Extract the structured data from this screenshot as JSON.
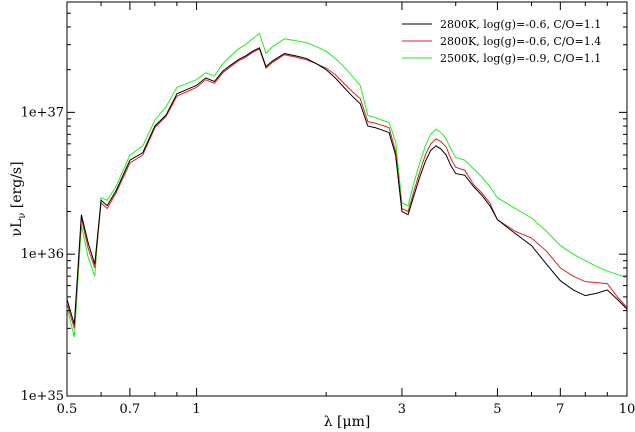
{
  "chart_data": {
    "type": "line",
    "xlabel": "λ [μm]",
    "ylabel_main": "νL",
    "ylabel_sub": "ν",
    "ylabel_unit": "[erg/s]",
    "xscale": "log",
    "yscale": "log",
    "xlim": [
      0.5,
      10
    ],
    "ylim": [
      1e+35,
      6e+37
    ],
    "x_ticks": [
      {
        "value": 0.5,
        "label": "0.5"
      },
      {
        "value": 0.7,
        "label": "0.7"
      },
      {
        "value": 1,
        "label": "1"
      },
      {
        "value": 3,
        "label": "3"
      },
      {
        "value": 5,
        "label": "5"
      },
      {
        "value": 7,
        "label": "7"
      },
      {
        "value": 10,
        "label": "10"
      }
    ],
    "y_ticks": [
      {
        "value": 1e+35,
        "label": "1e+35"
      },
      {
        "value": 1e+36,
        "label": "1e+36"
      },
      {
        "value": 1e+37,
        "label": "1e+37"
      }
    ],
    "grid": false,
    "legend_position": "top-right",
    "x": [
      0.5,
      0.52,
      0.54,
      0.56,
      0.58,
      0.6,
      0.62,
      0.65,
      0.7,
      0.75,
      0.8,
      0.85,
      0.9,
      0.95,
      1.0,
      1.05,
      1.1,
      1.15,
      1.2,
      1.25,
      1.3,
      1.35,
      1.4,
      1.45,
      1.5,
      1.6,
      1.7,
      1.8,
      1.9,
      2.0,
      2.1,
      2.2,
      2.3,
      2.4,
      2.5,
      2.6,
      2.7,
      2.8,
      2.9,
      3.0,
      3.1,
      3.2,
      3.3,
      3.4,
      3.5,
      3.6,
      3.7,
      3.8,
      3.9,
      4.0,
      4.2,
      4.4,
      4.6,
      4.8,
      5.0,
      5.5,
      6.0,
      6.5,
      7.0,
      7.5,
      8.0,
      8.5,
      9.0,
      9.5,
      10.0
    ],
    "series": [
      {
        "name": "2800K, log(g)=-0.6, C/O=1.1",
        "color": "#000000",
        "values": [
          4.8e+35,
          3.2e+35,
          1.9e+36,
          1.2e+36,
          8.5e+35,
          2.4e+36,
          2.2e+36,
          2.8e+36,
          4.6e+36,
          5.2e+36,
          8e+36,
          9.6e+36,
          1.35e+37,
          1.45e+37,
          1.55e+37,
          1.75e+37,
          1.65e+37,
          1.95e+37,
          2.15e+37,
          2.35e+37,
          2.5e+37,
          2.7e+37,
          2.85e+37,
          2.1e+37,
          2.3e+37,
          2.6e+37,
          2.5e+37,
          2.4e+37,
          2.2e+37,
          2e+37,
          1.75e+37,
          1.5e+37,
          1.3e+37,
          1.15e+37,
          8e+36,
          7.8e+36,
          7.5e+36,
          7.2e+36,
          5e+36,
          2e+36,
          1.9e+36,
          2.6e+36,
          3.5e+36,
          4.5e+36,
          5.4e+36,
          5.8e+36,
          5.5e+36,
          5e+36,
          4.2e+36,
          3.7e+36,
          3.6e+36,
          3e+36,
          2.6e+36,
          2.2e+36,
          1.75e+36,
          1.4e+36,
          1.15e+36,
          8.5e+35,
          6.5e+35,
          5.6e+35,
          5.1e+35,
          5.3e+35,
          5.6e+35,
          4.8e+35,
          4.1e+35
        ]
      },
      {
        "name": "2800K, log(g)=-0.6, C/O=1.4",
        "color": "#e02020",
        "values": [
          4.5e+35,
          3e+35,
          1.8e+36,
          1.1e+36,
          8e+35,
          2.3e+36,
          2.1e+36,
          2.7e+36,
          4.4e+36,
          5e+36,
          7.8e+36,
          9.4e+36,
          1.3e+37,
          1.4e+37,
          1.5e+37,
          1.7e+37,
          1.6e+37,
          1.9e+37,
          2.1e+37,
          2.3e+37,
          2.45e+37,
          2.65e+37,
          2.8e+37,
          2.05e+37,
          2.25e+37,
          2.55e+37,
          2.45e+37,
          2.35e+37,
          2.2e+37,
          2.05e+37,
          1.85e+37,
          1.6e+37,
          1.4e+37,
          1.25e+37,
          8.6e+36,
          8.4e+36,
          8.1e+36,
          7.8e+36,
          5.3e+36,
          2.1e+36,
          2e+36,
          2.8e+36,
          3.8e+36,
          5e+36,
          6e+36,
          6.5e+36,
          6.2e+36,
          5.7e+36,
          4.7e+36,
          4.1e+36,
          3.9e+36,
          3.1e+36,
          2.7e+36,
          2.3e+36,
          1.75e+36,
          1.45e+36,
          1.3e+36,
          1.05e+36,
          8e+35,
          7e+35,
          6.4e+35,
          6.3e+35,
          6.2e+35,
          5e+35,
          4.2e+35
        ]
      },
      {
        "name": "2500K, log(g)=-0.9, C/O=1.1",
        "color": "#22ee22",
        "values": [
          4.2e+35,
          2.6e+35,
          1.6e+36,
          9.5e+35,
          7e+35,
          2.5e+36,
          2.4e+36,
          3e+36,
          5e+36,
          5.8e+36,
          8.8e+36,
          1.1e+37,
          1.5e+37,
          1.6e+37,
          1.7e+37,
          1.9e+37,
          1.8e+37,
          2.2e+37,
          2.5e+37,
          2.8e+37,
          3e+37,
          3.3e+37,
          3.6e+37,
          2.6e+37,
          2.9e+37,
          3.3e+37,
          3.2e+37,
          3.1e+37,
          2.9e+37,
          2.7e+37,
          2.4e+37,
          2.1e+37,
          1.8e+37,
          1.55e+37,
          9.5e+36,
          9.2e+36,
          8.8e+36,
          8.5e+36,
          6.2e+36,
          2.3e+36,
          2.2e+36,
          3.2e+36,
          4.4e+36,
          5.8e+36,
          7e+36,
          7.6e+36,
          7.2e+36,
          6.5e+36,
          5.5e+36,
          4.8e+36,
          4.6e+36,
          4e+36,
          3.5e+36,
          3e+36,
          2.5e+36,
          2.1e+36,
          1.8e+36,
          1.45e+36,
          1.15e+36,
          1e+36,
          9e+35,
          8.2e+35,
          7.6e+35,
          7.2e+35,
          6.8e+35
        ]
      }
    ]
  }
}
